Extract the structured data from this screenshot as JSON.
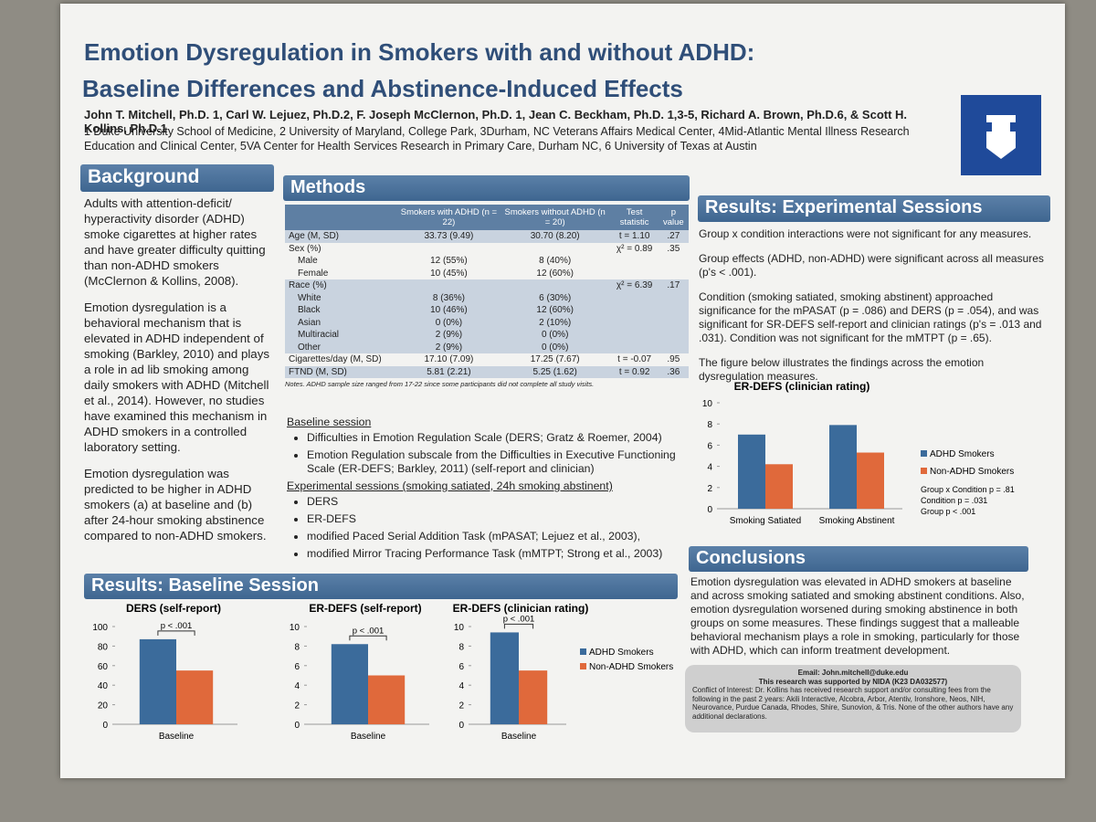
{
  "header": {
    "title_line1": "Emotion Dysregulation in Smokers with and without ADHD:",
    "title_line2": "Baseline Differences and Abstinence-Induced Effects",
    "authors": "John T. Mitchell, Ph.D. 1, Carl W. Lejuez, Ph.D.2, F. Joseph McClernon, Ph.D. 1, Jean C. Beckham, Ph.D. 1,3-5, Richard A. Brown, Ph.D.6, & Scott H. Kollins, Ph.D.1",
    "affiliations": "1 Duke University School of Medicine, 2 University of Maryland, College Park, 3Durham, NC Veterans Affairs Medical Center, 4Mid-Atlantic Mental Illness Research Education and Clinical Center, 5VA Center for Health Services Research in Primary Care, Durham NC, 6 University of Texas at Austin"
  },
  "background": {
    "heading": "Background",
    "paragraphs": [
      "Adults with attention-deficit/ hyperactivity disorder (ADHD) smoke cigarettes at higher rates and have greater difficulty quitting than non-ADHD smokers (McClernon & Kollins, 2008).",
      "Emotion dysregulation is a behavioral mechanism that is elevated in ADHD independent of smoking (Barkley, 2010) and plays a role in ad lib smoking among daily smokers with ADHD (Mitchell et al., 2014). However, no studies have examined this mechanism in ADHD smokers in a controlled laboratory setting.",
      "Emotion dysregulation was predicted to be higher in ADHD smokers (a) at baseline and (b) after 24-hour smoking abstinence compared to non-ADHD smokers."
    ]
  },
  "methods": {
    "heading": "Methods",
    "table": {
      "header": [
        "Smokers with ADHD (n = 22)",
        "Smokers without ADHD (n = 20)",
        "Test statistic",
        "p value"
      ],
      "rows": [
        {
          "label": "Age (M, SD)",
          "adhd": "33.73 (9.49)",
          "non_adhd": "30.70 (8.20)",
          "test": "t = 1.10",
          "p": ".27"
        },
        {
          "label": "Sex (%)",
          "test": "χ² = 0.89",
          "p": ".35"
        },
        {
          "label": "Male",
          "adhd": "12 (55%)",
          "non_adhd": "8 (40%)"
        },
        {
          "label": "Female",
          "adhd": "10 (45%)",
          "non_adhd": "12 (60%)"
        },
        {
          "label": "Race (%)",
          "test": "χ² = 6.39",
          "p": ".17"
        },
        {
          "label": "White",
          "adhd": "8 (36%)",
          "non_adhd": "6 (30%)"
        },
        {
          "label": "Black",
          "adhd": "10 (46%)",
          "non_adhd": "12 (60%)"
        },
        {
          "label": "Asian",
          "adhd": "0 (0%)",
          "non_adhd": "2 (10%)"
        },
        {
          "label": "Multiracial",
          "adhd": "2 (9%)",
          "non_adhd": "0 (0%)"
        },
        {
          "label": "Other",
          "adhd": "2 (9%)",
          "non_adhd": "0 (0%)"
        },
        {
          "label": "Cigarettes/day (M, SD)",
          "adhd": "17.10 (7.09)",
          "non_adhd": "17.25 (7.67)",
          "test": "t = -0.07",
          "p": ".95"
        },
        {
          "label": "FTND (M, SD)",
          "adhd": "5.81 (2.21)",
          "non_adhd": "5.25 (1.62)",
          "test": "t = 0.92",
          "p": ".36"
        }
      ],
      "notes": "Notes. ADHD sample size ranged from 17-22 since some participants did not complete all study visits."
    },
    "baseline_heading": "Baseline session",
    "baseline_items": [
      "Difficulties in Emotion Regulation Scale (DERS; Gratz & Roemer, 2004)",
      "Emotion Regulation subscale from the Difficulties in Executive Functioning Scale (ER-DEFS; Barkley, 2011) (self-report and clinician)"
    ],
    "experimental_heading": "Experimental sessions (smoking satiated, 24h smoking abstinent)",
    "experimental_items": [
      "DERS",
      "ER-DEFS",
      "modified Paced Serial Addition Task (mPASAT; Lejuez et al., 2003),",
      "modified Mirror Tracing Performance Task (mMTPT; Strong et al., 2003)"
    ]
  },
  "results_experimental": {
    "heading": "Results: Experimental Sessions",
    "paragraphs": [
      "Group x condition interactions were not significant for any measures.",
      "Group effects (ADHD, non-ADHD) were significant across all measures (p's < .001).",
      "Condition (smoking satiated, smoking abstinent) approached significance for the mPASAT (p = .086) and DERS (p = .054), and was significant for SR-DEFS self-report and clinician ratings (p's = .013 and .031). Condition was not significant for the mMTPT (p = .65).",
      "The figure below illustrates the findings across the emotion dysregulation measures."
    ],
    "chart": {
      "type": "bar",
      "title": "ER-DEFS (clinician rating)",
      "categories": [
        "Smoking Satiated",
        "Smoking Abstinent"
      ],
      "series": [
        {
          "name": "ADHD Smokers",
          "color": "#3b6b9b",
          "values": [
            7.0,
            7.9
          ]
        },
        {
          "name": "Non-ADHD Smokers",
          "color": "#e0693b",
          "values": [
            4.2,
            5.3
          ]
        }
      ],
      "ylim": [
        0,
        10
      ],
      "yticks": [
        0,
        2,
        4,
        6,
        8,
        10
      ],
      "annotations": [
        "Group x Condition p = .81",
        "Condition p = .031",
        "Group p < .001"
      ]
    }
  },
  "conclusions": {
    "heading": "Conclusions",
    "text": "Emotion dysregulation was elevated in ADHD smokers at baseline and across smoking satiated and smoking abstinent conditions. Also, emotion dysregulation worsened during smoking abstinence in both groups on some measures. These findings suggest that a malleable behavioral mechanism plays a role in smoking, particularly for those with ADHD, which can inform treatment development."
  },
  "contact": {
    "email": "Email: John.mitchell@duke.edu",
    "support": "This research was supported by NIDA (K23 DA032577)",
    "conflict": "Conflict of Interest: Dr. Kollins has received research support and/or consulting fees from the following in the past 2 years: Akili Interactive, Alcobra, Arbor, Atentiv, Ironshore, Neos, NIH, Neurovance, Purdue Canada, Rhodes, Shire, Sunovion, & Tris. None of the other authors have any additional declarations."
  },
  "results_baseline": {
    "heading": "Results: Baseline Session",
    "series": [
      {
        "name": "ADHD Smokers",
        "color": "#3b6b9b"
      },
      {
        "name": "Non-ADHD Smokers",
        "color": "#e0693b"
      }
    ],
    "charts": [
      {
        "type": "bar",
        "title": "DERS (self-report)",
        "category": "Baseline",
        "values": [
          87,
          55
        ],
        "ylim": [
          0,
          100
        ],
        "yticks": [
          0,
          20,
          40,
          60,
          80,
          100
        ],
        "annotation": "p < .001"
      },
      {
        "type": "bar",
        "title": "ER-DEFS (self-report)",
        "category": "Baseline",
        "values": [
          8.2,
          5.0
        ],
        "ylim": [
          0,
          10
        ],
        "yticks": [
          0,
          2,
          4,
          6,
          8,
          10
        ],
        "annotation": "p < .001"
      },
      {
        "type": "bar",
        "title": "ER-DEFS (clinician rating)",
        "category": "Baseline",
        "values": [
          9.4,
          5.5
        ],
        "ylim": [
          0,
          10
        ],
        "yticks": [
          0,
          2,
          4,
          6,
          8,
          10
        ],
        "annotation": "p < .001"
      }
    ]
  }
}
